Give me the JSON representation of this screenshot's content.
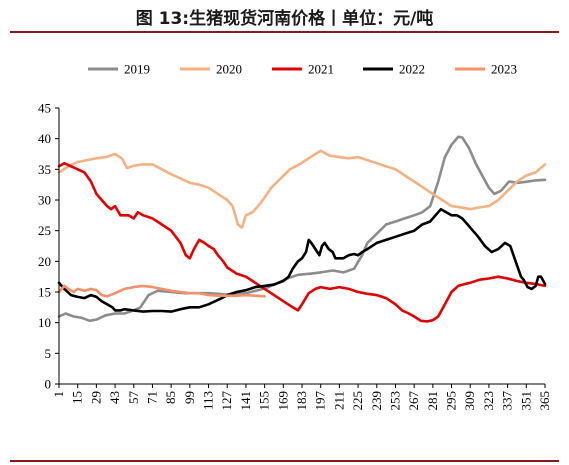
{
  "chart_data": {
    "type": "line",
    "title": "图 13:生猪现货河南价格丨单位：元/吨",
    "xlabel": "",
    "ylabel": "",
    "xlim": [
      1,
      365
    ],
    "ylim": [
      0,
      45
    ],
    "y_ticks": [
      0,
      5,
      10,
      15,
      20,
      25,
      30,
      35,
      40,
      45
    ],
    "x_ticks": [
      1,
      15,
      29,
      43,
      57,
      71,
      85,
      99,
      113,
      127,
      141,
      155,
      169,
      183,
      197,
      211,
      225,
      239,
      253,
      267,
      281,
      295,
      309,
      323,
      337,
      351,
      365
    ],
    "grid": false,
    "legend": "top",
    "series": [
      {
        "name": "2019",
        "color": "#8c8c8c",
        "points": [
          [
            1,
            11
          ],
          [
            6,
            11.5
          ],
          [
            12,
            11
          ],
          [
            18,
            10.8
          ],
          [
            24,
            10.3
          ],
          [
            29,
            10.5
          ],
          [
            36,
            11.2
          ],
          [
            43,
            11.5
          ],
          [
            50,
            11.5
          ],
          [
            57,
            12
          ],
          [
            62,
            12.5
          ],
          [
            68,
            14.5
          ],
          [
            75,
            15.2
          ],
          [
            85,
            15
          ],
          [
            95,
            14.8
          ],
          [
            105,
            14.8
          ],
          [
            113,
            14.8
          ],
          [
            120,
            14.7
          ],
          [
            127,
            14.6
          ],
          [
            134,
            14.7
          ],
          [
            141,
            14.8
          ],
          [
            150,
            15.3
          ],
          [
            158,
            15.8
          ],
          [
            165,
            16.5
          ],
          [
            172,
            17.2
          ],
          [
            180,
            17.8
          ],
          [
            190,
            18
          ],
          [
            197,
            18.2
          ],
          [
            206,
            18.5
          ],
          [
            214,
            18.2
          ],
          [
            222,
            18.8
          ],
          [
            228,
            21
          ],
          [
            232,
            23
          ],
          [
            239,
            24.5
          ],
          [
            246,
            26
          ],
          [
            253,
            26.5
          ],
          [
            260,
            27
          ],
          [
            267,
            27.5
          ],
          [
            273,
            28
          ],
          [
            279,
            29
          ],
          [
            285,
            33
          ],
          [
            290,
            37
          ],
          [
            295,
            39
          ],
          [
            300,
            40.3
          ],
          [
            303,
            40.2
          ],
          [
            308,
            38.5
          ],
          [
            313,
            36
          ],
          [
            318,
            34
          ],
          [
            323,
            32
          ],
          [
            327,
            31
          ],
          [
            332,
            31.5
          ],
          [
            338,
            33
          ],
          [
            345,
            32.8
          ],
          [
            352,
            33
          ],
          [
            358,
            33.2
          ],
          [
            365,
            33.3
          ]
        ]
      },
      {
        "name": "2020",
        "color": "#f4b183",
        "points": [
          [
            1,
            34.5
          ],
          [
            8,
            35.5
          ],
          [
            15,
            36.2
          ],
          [
            22,
            36.5
          ],
          [
            29,
            36.8
          ],
          [
            36,
            37
          ],
          [
            43,
            37.5
          ],
          [
            48,
            36.8
          ],
          [
            52,
            35.2
          ],
          [
            57,
            35.6
          ],
          [
            64,
            35.8
          ],
          [
            71,
            35.8
          ],
          [
            78,
            35
          ],
          [
            85,
            34.2
          ],
          [
            92,
            33.5
          ],
          [
            99,
            32.8
          ],
          [
            106,
            32.5
          ],
          [
            113,
            32
          ],
          [
            120,
            31
          ],
          [
            127,
            30
          ],
          [
            131,
            29
          ],
          [
            135,
            26
          ],
          [
            138,
            25.5
          ],
          [
            141,
            27.5
          ],
          [
            146,
            28
          ],
          [
            152,
            29.5
          ],
          [
            160,
            32
          ],
          [
            167,
            33.5
          ],
          [
            174,
            35
          ],
          [
            181,
            35.8
          ],
          [
            188,
            36.8
          ],
          [
            193,
            37.5
          ],
          [
            197,
            38
          ],
          [
            204,
            37.2
          ],
          [
            211,
            37
          ],
          [
            218,
            36.8
          ],
          [
            225,
            37
          ],
          [
            232,
            36.5
          ],
          [
            239,
            36
          ],
          [
            246,
            35.5
          ],
          [
            253,
            35
          ],
          [
            260,
            34
          ],
          [
            267,
            33
          ],
          [
            274,
            32
          ],
          [
            281,
            31
          ],
          [
            288,
            30
          ],
          [
            295,
            29
          ],
          [
            302,
            28.8
          ],
          [
            309,
            28.5
          ],
          [
            316,
            28.8
          ],
          [
            323,
            29
          ],
          [
            330,
            30
          ],
          [
            337,
            31.5
          ],
          [
            344,
            33
          ],
          [
            351,
            34
          ],
          [
            358,
            34.5
          ],
          [
            365,
            35.8
          ]
        ]
      },
      {
        "name": "2021",
        "color": "#e00000",
        "points": [
          [
            1,
            35.5
          ],
          [
            5,
            36
          ],
          [
            10,
            35.5
          ],
          [
            15,
            35
          ],
          [
            20,
            34.5
          ],
          [
            25,
            33
          ],
          [
            29,
            31
          ],
          [
            33,
            30
          ],
          [
            37,
            29
          ],
          [
            40,
            28.5
          ],
          [
            43,
            29
          ],
          [
            47,
            27.5
          ],
          [
            50,
            27.5
          ],
          [
            53,
            27.5
          ],
          [
            57,
            27
          ],
          [
            60,
            28
          ],
          [
            64,
            27.5
          ],
          [
            71,
            27
          ],
          [
            78,
            26
          ],
          [
            85,
            25
          ],
          [
            92,
            23
          ],
          [
            96,
            21
          ],
          [
            99,
            20.5
          ],
          [
            102,
            22
          ],
          [
            106,
            23.5
          ],
          [
            110,
            23
          ],
          [
            113,
            22.5
          ],
          [
            117,
            22
          ],
          [
            120,
            21
          ],
          [
            124,
            20
          ],
          [
            127,
            19
          ],
          [
            134,
            18
          ],
          [
            141,
            17.5
          ],
          [
            148,
            16.5
          ],
          [
            155,
            15.5
          ],
          [
            162,
            14.5
          ],
          [
            169,
            13.5
          ],
          [
            176,
            12.5
          ],
          [
            180,
            12
          ],
          [
            183,
            13
          ],
          [
            188,
            14.8
          ],
          [
            193,
            15.5
          ],
          [
            197,
            15.8
          ],
          [
            204,
            15.5
          ],
          [
            211,
            15.8
          ],
          [
            218,
            15.5
          ],
          [
            225,
            15
          ],
          [
            232,
            14.7
          ],
          [
            239,
            14.5
          ],
          [
            246,
            14
          ],
          [
            253,
            13
          ],
          [
            258,
            12
          ],
          [
            263,
            11.5
          ],
          [
            267,
            11
          ],
          [
            272,
            10.3
          ],
          [
            277,
            10.2
          ],
          [
            281,
            10.4
          ],
          [
            285,
            11
          ],
          [
            290,
            13
          ],
          [
            295,
            15
          ],
          [
            300,
            16
          ],
          [
            305,
            16.3
          ],
          [
            309,
            16.5
          ],
          [
            316,
            17
          ],
          [
            323,
            17.2
          ],
          [
            330,
            17.5
          ],
          [
            337,
            17.2
          ],
          [
            344,
            16.8
          ],
          [
            351,
            16.5
          ],
          [
            358,
            16.3
          ],
          [
            365,
            16
          ]
        ]
      },
      {
        "name": "2022",
        "color": "#000000",
        "points": [
          [
            1,
            16.5
          ],
          [
            5,
            15.5
          ],
          [
            10,
            14.5
          ],
          [
            15,
            14.2
          ],
          [
            20,
            14
          ],
          [
            25,
            14.5
          ],
          [
            29,
            14.2
          ],
          [
            33,
            13.5
          ],
          [
            37,
            13
          ],
          [
            41,
            12.5
          ],
          [
            43,
            12
          ],
          [
            47,
            12
          ],
          [
            50,
            12.2
          ],
          [
            57,
            12
          ],
          [
            64,
            11.8
          ],
          [
            71,
            11.9
          ],
          [
            78,
            11.9
          ],
          [
            85,
            11.8
          ],
          [
            92,
            12.2
          ],
          [
            99,
            12.5
          ],
          [
            106,
            12.5
          ],
          [
            113,
            13
          ],
          [
            118,
            13.5
          ],
          [
            123,
            14
          ],
          [
            127,
            14.5
          ],
          [
            134,
            15
          ],
          [
            141,
            15.3
          ],
          [
            148,
            15.8
          ],
          [
            155,
            16
          ],
          [
            162,
            16.2
          ],
          [
            169,
            16.8
          ],
          [
            173,
            17.5
          ],
          [
            176,
            18.8
          ],
          [
            180,
            20
          ],
          [
            183,
            20.5
          ],
          [
            186,
            21.5
          ],
          [
            188,
            23.5
          ],
          [
            190,
            23
          ],
          [
            193,
            22
          ],
          [
            196,
            21
          ],
          [
            198,
            22.5
          ],
          [
            200,
            23
          ],
          [
            203,
            22
          ],
          [
            206,
            21.5
          ],
          [
            208,
            20.5
          ],
          [
            211,
            20.5
          ],
          [
            214,
            20.5
          ],
          [
            218,
            21
          ],
          [
            222,
            21.2
          ],
          [
            225,
            21
          ],
          [
            228,
            21.5
          ],
          [
            232,
            22
          ],
          [
            239,
            23
          ],
          [
            246,
            23.5
          ],
          [
            253,
            24
          ],
          [
            260,
            24.5
          ],
          [
            267,
            25
          ],
          [
            273,
            26
          ],
          [
            279,
            26.5
          ],
          [
            283,
            27.5
          ],
          [
            287,
            28.5
          ],
          [
            291,
            28
          ],
          [
            295,
            27.5
          ],
          [
            299,
            27.5
          ],
          [
            303,
            27
          ],
          [
            307,
            26
          ],
          [
            311,
            25
          ],
          [
            315,
            24
          ],
          [
            320,
            22.5
          ],
          [
            325,
            21.5
          ],
          [
            330,
            22
          ],
          [
            335,
            23
          ],
          [
            339,
            22.5
          ],
          [
            343,
            20
          ],
          [
            347,
            17.5
          ],
          [
            349,
            17
          ],
          [
            352,
            15.8
          ],
          [
            355,
            15.5
          ],
          [
            358,
            16
          ],
          [
            360,
            17.5
          ],
          [
            362,
            17.5
          ],
          [
            365,
            16.3
          ]
        ]
      },
      {
        "name": "2023",
        "color": "#f4906b",
        "points": [
          [
            1,
            15
          ],
          [
            5,
            16
          ],
          [
            8,
            15.5
          ],
          [
            12,
            15
          ],
          [
            15,
            15.5
          ],
          [
            20,
            15.2
          ],
          [
            25,
            15.5
          ],
          [
            29,
            15.3
          ],
          [
            33,
            14.5
          ],
          [
            37,
            14.3
          ],
          [
            43,
            14.8
          ],
          [
            50,
            15.5
          ],
          [
            57,
            15.8
          ],
          [
            64,
            16
          ],
          [
            71,
            15.8
          ],
          [
            78,
            15.5
          ],
          [
            85,
            15.2
          ],
          [
            92,
            15
          ],
          [
            99,
            14.8
          ],
          [
            106,
            14.8
          ],
          [
            113,
            14.5
          ],
          [
            120,
            14.4
          ],
          [
            127,
            14.4
          ],
          [
            134,
            14.4
          ],
          [
            141,
            14.5
          ],
          [
            148,
            14.4
          ],
          [
            155,
            14.3
          ]
        ]
      }
    ]
  }
}
